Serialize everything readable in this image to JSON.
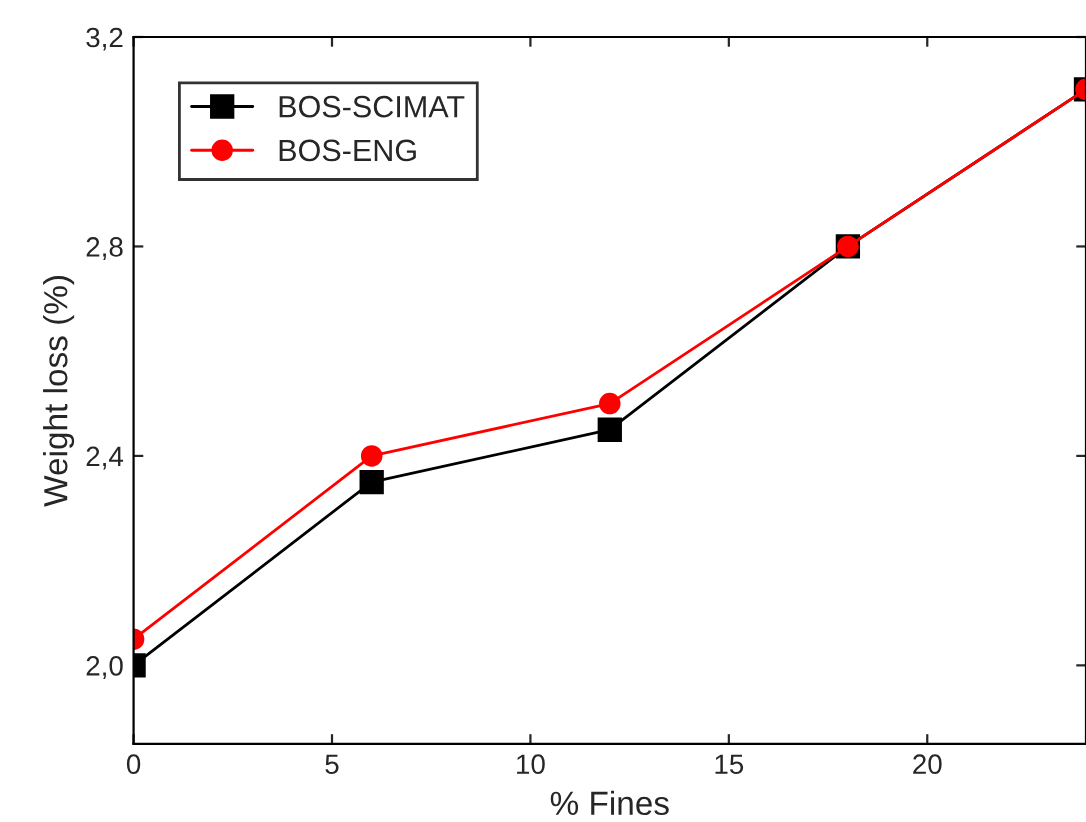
{
  "chart_data": {
    "type": "line",
    "xlabel": "% Fines",
    "ylabel": "Weight loss (%)",
    "x": [
      0,
      6,
      12,
      18,
      24
    ],
    "series": [
      {
        "name": "BOS-SCIMAT",
        "color": "#000000",
        "marker": "square",
        "values": [
          2.0,
          2.35,
          2.45,
          2.8,
          3.1
        ]
      },
      {
        "name": "BOS-ENG",
        "color": "#ff0000",
        "marker": "circle",
        "values": [
          2.05,
          2.4,
          2.5,
          2.8,
          3.1
        ]
      }
    ],
    "xlim": [
      0,
      24
    ],
    "xticks": [
      0,
      5,
      10,
      15,
      20
    ],
    "ylim": [
      1.85,
      3.2
    ],
    "yticks": [
      {
        "value": 2.0,
        "label": "2,0"
      },
      {
        "value": 2.4,
        "label": "2,4"
      },
      {
        "value": 2.8,
        "label": "2,8"
      },
      {
        "value": 3.2,
        "label": "3,2"
      }
    ],
    "grid": false,
    "legend": "top left",
    "line_style": "solid"
  }
}
